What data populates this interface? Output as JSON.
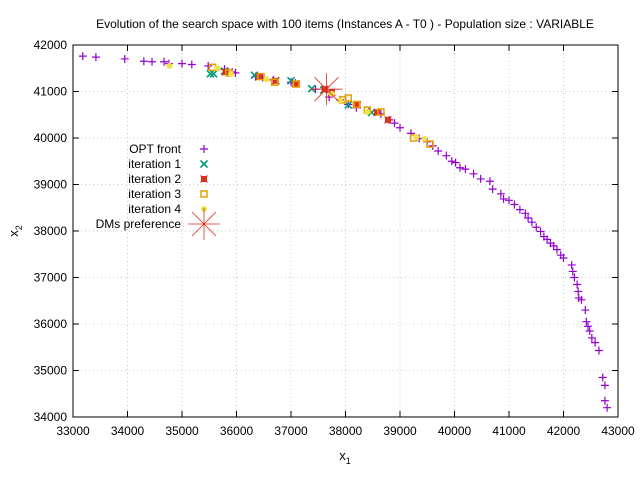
{
  "chart_data": {
    "type": "scatter",
    "title": "Evolution of the search space with 100 items (Instances A - T0 ) - Population size : VARIABLE",
    "xlabel": "x",
    "xlabel_sub": "1",
    "ylabel": "x",
    "ylabel_sub": "2",
    "xlim": [
      33000,
      43000
    ],
    "ylim": [
      34000,
      42000
    ],
    "xticks": [
      33000,
      34000,
      35000,
      36000,
      37000,
      38000,
      39000,
      40000,
      41000,
      42000,
      43000
    ],
    "yticks": [
      34000,
      35000,
      36000,
      37000,
      38000,
      39000,
      40000,
      41000,
      42000
    ],
    "grid": true,
    "legend_position": "left-middle",
    "series": [
      {
        "name": "OPT front",
        "marker": "plus",
        "color": "#9400d3",
        "points": [
          [
            33180,
            41760
          ],
          [
            33420,
            41740
          ],
          [
            33950,
            41700
          ],
          [
            34300,
            41650
          ],
          [
            34450,
            41640
          ],
          [
            34670,
            41640
          ],
          [
            34760,
            41600
          ],
          [
            35000,
            41600
          ],
          [
            35180,
            41580
          ],
          [
            35480,
            41550
          ],
          [
            35780,
            41480
          ],
          [
            35920,
            41420
          ],
          [
            35980,
            41400
          ],
          [
            36350,
            41320
          ],
          [
            36480,
            41300
          ],
          [
            36680,
            41250
          ],
          [
            37000,
            41200
          ],
          [
            37080,
            41180
          ],
          [
            37450,
            41050
          ],
          [
            37700,
            40880
          ],
          [
            37900,
            40820
          ],
          [
            38050,
            40720
          ],
          [
            38200,
            40650
          ],
          [
            38430,
            40560
          ],
          [
            38650,
            40520
          ],
          [
            38800,
            40390
          ],
          [
            38900,
            40320
          ],
          [
            39000,
            40220
          ],
          [
            39200,
            40100
          ],
          [
            39350,
            39990
          ],
          [
            39500,
            39920
          ],
          [
            39600,
            39830
          ],
          [
            39700,
            39720
          ],
          [
            39850,
            39620
          ],
          [
            39950,
            39500
          ],
          [
            40020,
            39470
          ],
          [
            40100,
            39360
          ],
          [
            40200,
            39330
          ],
          [
            40350,
            39230
          ],
          [
            40480,
            39120
          ],
          [
            40650,
            39070
          ],
          [
            40700,
            38900
          ],
          [
            40850,
            38800
          ],
          [
            40900,
            38690
          ],
          [
            41000,
            38660
          ],
          [
            41100,
            38570
          ],
          [
            41200,
            38460
          ],
          [
            41300,
            38380
          ],
          [
            41350,
            38280
          ],
          [
            41420,
            38190
          ],
          [
            41500,
            38080
          ],
          [
            41580,
            37990
          ],
          [
            41640,
            37880
          ],
          [
            41700,
            37820
          ],
          [
            41760,
            37740
          ],
          [
            41820,
            37680
          ],
          [
            41880,
            37600
          ],
          [
            41950,
            37480
          ],
          [
            42000,
            37420
          ],
          [
            42150,
            37270
          ],
          [
            42170,
            37130
          ],
          [
            42200,
            37000
          ],
          [
            42250,
            36850
          ],
          [
            42270,
            36700
          ],
          [
            42280,
            36560
          ],
          [
            42330,
            36520
          ],
          [
            42400,
            36300
          ],
          [
            42420,
            36050
          ],
          [
            42450,
            35950
          ],
          [
            42480,
            35850
          ],
          [
            42520,
            35700
          ],
          [
            42580,
            35600
          ],
          [
            42650,
            35430
          ],
          [
            42720,
            34850
          ],
          [
            42760,
            34680
          ],
          [
            42760,
            34350
          ],
          [
            42800,
            34200
          ]
        ]
      },
      {
        "name": "iteration 1",
        "marker": "cross",
        "color": "#009e73",
        "points": [
          [
            35520,
            41380
          ],
          [
            35580,
            41380
          ],
          [
            35780,
            41440
          ],
          [
            36330,
            41350
          ],
          [
            36720,
            41230
          ],
          [
            37000,
            41230
          ],
          [
            37380,
            41060
          ],
          [
            37600,
            41030
          ],
          [
            38050,
            40710
          ],
          [
            38480,
            40550
          ]
        ]
      },
      {
        "name": "iteration 2",
        "marker": "filled-square",
        "color": "#dc2f1e",
        "points": [
          [
            35800,
            41420
          ],
          [
            36420,
            41320
          ],
          [
            36720,
            41230
          ],
          [
            37080,
            41170
          ],
          [
            37620,
            41050
          ],
          [
            37750,
            40980
          ],
          [
            38220,
            40710
          ],
          [
            38580,
            40550
          ],
          [
            38780,
            40390
          ]
        ]
      },
      {
        "name": "iteration 3",
        "marker": "open-square",
        "color": "#e69f00",
        "points": [
          [
            35560,
            41520
          ],
          [
            35860,
            41400
          ],
          [
            36450,
            41320
          ],
          [
            36700,
            41200
          ],
          [
            37100,
            41160
          ],
          [
            37950,
            40820
          ],
          [
            38050,
            40860
          ],
          [
            38200,
            40720
          ],
          [
            38400,
            40600
          ],
          [
            38650,
            40560
          ],
          [
            39250,
            40000
          ],
          [
            39550,
            39870
          ]
        ]
      },
      {
        "name": "iteration 4",
        "marker": "filled-circle",
        "color": "#f0e442",
        "points": [
          [
            34770,
            41550
          ],
          [
            35650,
            41500
          ],
          [
            35900,
            41380
          ],
          [
            36550,
            41260
          ],
          [
            37750,
            40950
          ],
          [
            37900,
            40800
          ],
          [
            38400,
            40560
          ],
          [
            39300,
            40020
          ],
          [
            39450,
            39980
          ]
        ]
      },
      {
        "name": "DMs preference",
        "marker": "star",
        "color": "#dc2f1e",
        "points": [
          [
            37650,
            41050
          ]
        ]
      }
    ]
  }
}
